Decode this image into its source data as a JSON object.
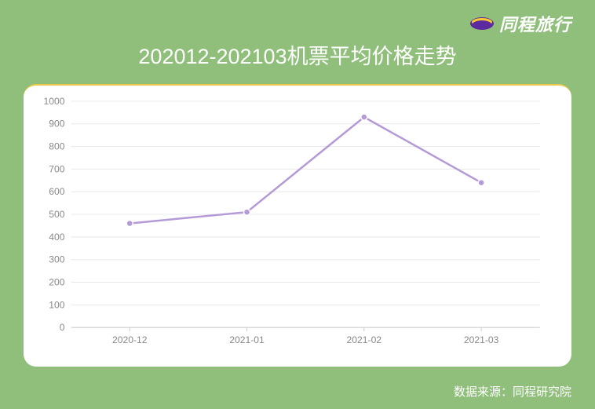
{
  "background_color": "#8fbf7a",
  "brand": {
    "text": "同程旅行",
    "icon_name": "tongcheng-logo-icon",
    "icon_primary": "#5a2a9e",
    "icon_accent": "#f9c933",
    "text_color": "#ffffff"
  },
  "title": "202012-202103机票平均价格走势",
  "source": "数据来源：同程研究院",
  "chart": {
    "type": "line",
    "card_accent_color": "#e8c94a",
    "card_background": "#ffffff",
    "categories": [
      "2020-12",
      "2021-01",
      "2021-02",
      "2021-03"
    ],
    "values": [
      460,
      510,
      930,
      640
    ],
    "line_color": "#b49ad6",
    "point_color": "#b49ad6",
    "ylim": [
      0,
      1000
    ],
    "ytick_step": 100,
    "yticks": [
      0,
      100,
      200,
      300,
      400,
      500,
      600,
      700,
      800,
      900,
      1000
    ],
    "grid_color": "#e8e8e8",
    "axis_color": "#cccccc",
    "label_color": "#888888",
    "label_fontsize": 12,
    "line_width": 2.5,
    "marker_radius": 4
  }
}
